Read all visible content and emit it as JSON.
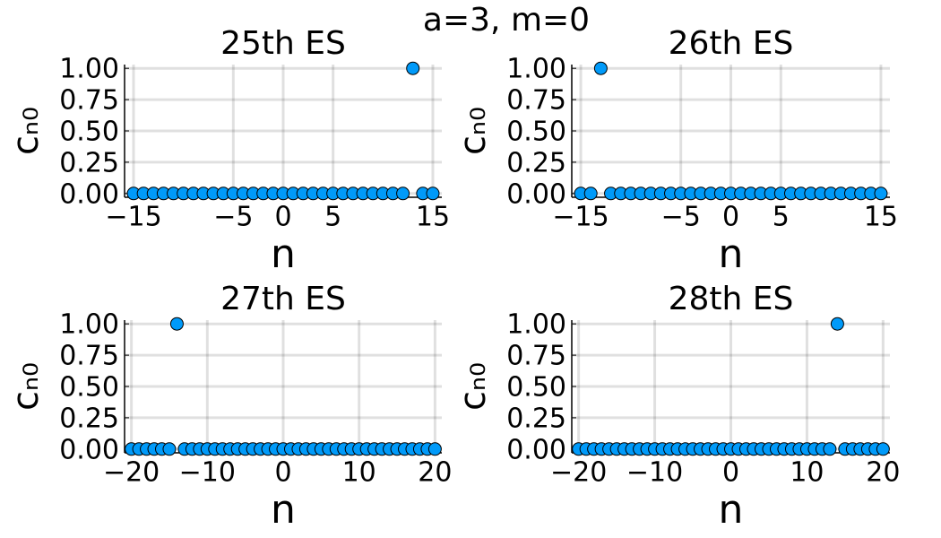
{
  "suptitle": "a=3, m=0",
  "chart_data": [
    {
      "type": "scatter",
      "title": "25th ES",
      "xlabel": "n",
      "ylabel": "cₙ₀",
      "color": "#009af9",
      "grid": true,
      "x": [
        -15,
        -14,
        -13,
        -12,
        -11,
        -10,
        -9,
        -8,
        -7,
        -6,
        -5,
        -4,
        -3,
        -2,
        -1,
        0,
        1,
        2,
        3,
        4,
        5,
        6,
        7,
        8,
        9,
        10,
        11,
        12,
        13,
        14,
        15
      ],
      "values": [
        0,
        0,
        0,
        0,
        0,
        0,
        0,
        0,
        0,
        0,
        0,
        0,
        0,
        0,
        0,
        0,
        0,
        0,
        0,
        0,
        0,
        0,
        0,
        0,
        0,
        0,
        0,
        0,
        1,
        0,
        0
      ],
      "xlim": [
        -15.9,
        15.9
      ],
      "ylim": [
        -0.03,
        1.03
      ],
      "xticks": [
        {
          "value": -15,
          "label": "−15"
        },
        {
          "value": -5,
          "label": "−5"
        },
        0,
        5,
        15
      ],
      "yticks": [
        {
          "value": 0,
          "label": "0.00"
        },
        {
          "value": 0.25,
          "label": "0.25"
        },
        {
          "value": 0.5,
          "label": "0.50"
        },
        {
          "value": 0.75,
          "label": "0.75"
        },
        {
          "value": 1,
          "label": "1.00"
        }
      ]
    },
    {
      "type": "scatter",
      "title": "26th ES",
      "xlabel": "n",
      "ylabel": "cₙ₀",
      "color": "#009af9",
      "grid": true,
      "x": [
        -15,
        -14,
        -13,
        -12,
        -11,
        -10,
        -9,
        -8,
        -7,
        -6,
        -5,
        -4,
        -3,
        -2,
        -1,
        0,
        1,
        2,
        3,
        4,
        5,
        6,
        7,
        8,
        9,
        10,
        11,
        12,
        13,
        14,
        15
      ],
      "values": [
        0,
        0,
        1,
        0,
        0,
        0,
        0,
        0,
        0,
        0,
        0,
        0,
        0,
        0,
        0,
        0,
        0,
        0,
        0,
        0,
        0,
        0,
        0,
        0,
        0,
        0,
        0,
        0,
        0,
        0,
        0
      ],
      "xlim": [
        -15.9,
        15.9
      ],
      "ylim": [
        -0.03,
        1.03
      ],
      "xticks": [
        {
          "value": -15,
          "label": "−15"
        },
        {
          "value": -5,
          "label": "−5"
        },
        0,
        5,
        15
      ],
      "yticks": [
        {
          "value": 0,
          "label": "0.00"
        },
        {
          "value": 0.25,
          "label": "0.25"
        },
        {
          "value": 0.5,
          "label": "0.50"
        },
        {
          "value": 0.75,
          "label": "0.75"
        },
        {
          "value": 1,
          "label": "1.00"
        }
      ]
    },
    {
      "type": "scatter",
      "title": "27th ES",
      "xlabel": "n",
      "ylabel": "cₙ₀",
      "color": "#009af9",
      "grid": true,
      "x": [
        -20,
        -19,
        -18,
        -17,
        -16,
        -15,
        -14,
        -13,
        -12,
        -11,
        -10,
        -9,
        -8,
        -7,
        -6,
        -5,
        -4,
        -3,
        -2,
        -1,
        0,
        1,
        2,
        3,
        4,
        5,
        6,
        7,
        8,
        9,
        10,
        11,
        12,
        13,
        14,
        15,
        16,
        17,
        18,
        19,
        20
      ],
      "values": [
        0,
        0,
        0,
        0,
        0,
        0,
        1,
        0,
        0,
        0,
        0,
        0,
        0,
        0,
        0,
        0,
        0,
        0,
        0,
        0,
        0,
        0,
        0,
        0,
        0,
        0,
        0,
        0,
        0,
        0,
        0,
        0,
        0,
        0,
        0,
        0,
        0,
        0,
        0,
        0,
        0
      ],
      "xlim": [
        -20.9,
        20.9
      ],
      "ylim": [
        -0.03,
        1.03
      ],
      "xticks": [
        {
          "value": -20,
          "label": "−20"
        },
        {
          "value": -10,
          "label": "−10"
        },
        0,
        10,
        20
      ],
      "yticks": [
        {
          "value": 0,
          "label": "0.00"
        },
        {
          "value": 0.25,
          "label": "0.25"
        },
        {
          "value": 0.5,
          "label": "0.50"
        },
        {
          "value": 0.75,
          "label": "0.75"
        },
        {
          "value": 1,
          "label": "1.00"
        }
      ]
    },
    {
      "type": "scatter",
      "title": "28th ES",
      "xlabel": "n",
      "ylabel": "cₙ₀",
      "color": "#009af9",
      "grid": true,
      "x": [
        -20,
        -19,
        -18,
        -17,
        -16,
        -15,
        -14,
        -13,
        -12,
        -11,
        -10,
        -9,
        -8,
        -7,
        -6,
        -5,
        -4,
        -3,
        -2,
        -1,
        0,
        1,
        2,
        3,
        4,
        5,
        6,
        7,
        8,
        9,
        10,
        11,
        12,
        13,
        14,
        15,
        16,
        17,
        18,
        19,
        20
      ],
      "values": [
        0,
        0,
        0,
        0,
        0,
        0,
        0,
        0,
        0,
        0,
        0,
        0,
        0,
        0,
        0,
        0,
        0,
        0,
        0,
        0,
        0,
        0,
        0,
        0,
        0,
        0,
        0,
        0,
        0,
        0,
        0,
        0,
        0,
        0,
        1,
        0,
        0,
        0,
        0,
        0,
        0
      ],
      "xlim": [
        -20.9,
        20.9
      ],
      "ylim": [
        -0.03,
        1.03
      ],
      "xticks": [
        {
          "value": -20,
          "label": "−20"
        },
        {
          "value": -10,
          "label": "−10"
        },
        0,
        10,
        20
      ],
      "yticks": [
        {
          "value": 0,
          "label": "0.00"
        },
        {
          "value": 0.25,
          "label": "0.25"
        },
        {
          "value": 0.5,
          "label": "0.50"
        },
        {
          "value": 0.75,
          "label": "0.75"
        },
        {
          "value": 1,
          "label": "1.00"
        }
      ]
    }
  ]
}
